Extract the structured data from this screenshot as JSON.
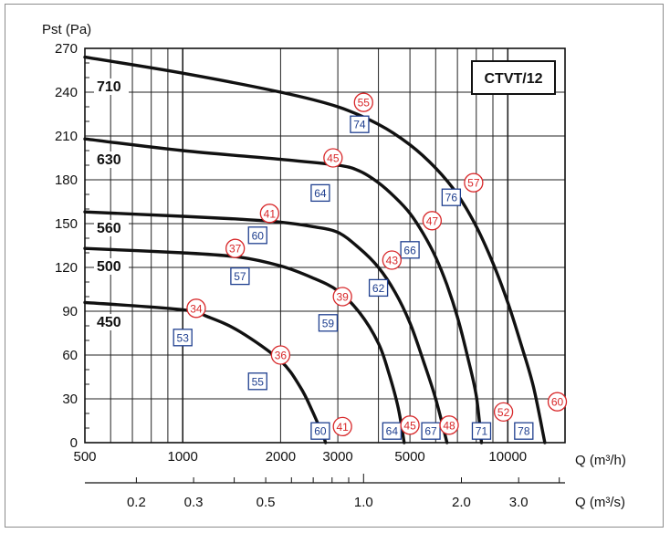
{
  "chart_data": {
    "type": "line",
    "title": "CTVT/12",
    "ylabel": "Pst (Pa)",
    "xlabel": "Q (m³/h)",
    "xlabel_secondary": "Q (m³/s)",
    "x_scale": "log",
    "xlim": [
      500,
      15000
    ],
    "ylim": [
      0,
      270
    ],
    "grid": true,
    "y_ticks": [
      0,
      30,
      60,
      90,
      120,
      150,
      180,
      210,
      240,
      270
    ],
    "x_tick_labels": [
      {
        "value": 500,
        "label": "500"
      },
      {
        "value": 1000,
        "label": "1000"
      },
      {
        "value": 2000,
        "label": "2000"
      },
      {
        "value": 3000,
        "label": "3000"
      },
      {
        "value": 5000,
        "label": "5000"
      },
      {
        "value": 10000,
        "label": "10000"
      }
    ],
    "x2_tick_labels": [
      {
        "value": 0.2,
        "label": "0.2"
      },
      {
        "value": 0.3,
        "label": "0.3"
      },
      {
        "value": 0.5,
        "label": "0.5"
      },
      {
        "value": 1.0,
        "label": "1.0"
      },
      {
        "value": 2.0,
        "label": "2.0"
      },
      {
        "value": 3.0,
        "label": "3.0"
      }
    ],
    "series": [
      {
        "name": "710",
        "points": [
          [
            500,
            264
          ],
          [
            1000,
            253
          ],
          [
            2000,
            240
          ],
          [
            3000,
            230
          ],
          [
            4000,
            218
          ],
          [
            5000,
            204
          ],
          [
            6000,
            188
          ],
          [
            7000,
            170
          ],
          [
            8000,
            148
          ],
          [
            9000,
            123
          ],
          [
            10000,
            96
          ],
          [
            11000,
            67
          ],
          [
            12000,
            38
          ],
          [
            13000,
            0
          ]
        ]
      },
      {
        "name": "630",
        "points": [
          [
            500,
            208
          ],
          [
            1000,
            200
          ],
          [
            2000,
            194
          ],
          [
            3000,
            190
          ],
          [
            3500,
            186
          ],
          [
            4000,
            178
          ],
          [
            4500,
            168
          ],
          [
            5000,
            157
          ],
          [
            5500,
            143
          ],
          [
            6000,
            127
          ],
          [
            6500,
            108
          ],
          [
            7000,
            86
          ],
          [
            7500,
            60
          ],
          [
            8000,
            32
          ],
          [
            8300,
            0
          ]
        ]
      },
      {
        "name": "560",
        "points": [
          [
            500,
            158
          ],
          [
            1000,
            155
          ],
          [
            1500,
            153
          ],
          [
            2000,
            151
          ],
          [
            2500,
            148
          ],
          [
            3000,
            144
          ],
          [
            3500,
            133
          ],
          [
            4000,
            120
          ],
          [
            4500,
            103
          ],
          [
            5000,
            82
          ],
          [
            5500,
            56
          ],
          [
            6000,
            30
          ],
          [
            6500,
            0
          ]
        ]
      },
      {
        "name": "500",
        "points": [
          [
            500,
            133
          ],
          [
            1000,
            130
          ],
          [
            1500,
            127
          ],
          [
            2000,
            121
          ],
          [
            2500,
            113
          ],
          [
            3000,
            104
          ],
          [
            3500,
            89
          ],
          [
            4000,
            68
          ],
          [
            4300,
            48
          ],
          [
            4600,
            24
          ],
          [
            4800,
            0
          ]
        ]
      },
      {
        "name": "450",
        "points": [
          [
            500,
            96
          ],
          [
            1000,
            91
          ],
          [
            1200,
            86
          ],
          [
            1500,
            76
          ],
          [
            2000,
            56
          ],
          [
            2300,
            38
          ],
          [
            2500,
            22
          ],
          [
            2700,
            5
          ],
          [
            2750,
            0
          ]
        ]
      }
    ],
    "noise_markers": [
      {
        "style": "square",
        "label": "74",
        "x": 3500,
        "y": 218
      },
      {
        "style": "square",
        "label": "64",
        "x": 2650,
        "y": 171
      },
      {
        "style": "square",
        "label": "60",
        "x": 1700,
        "y": 142
      },
      {
        "style": "square",
        "label": "57",
        "x": 1500,
        "y": 114
      },
      {
        "style": "square",
        "label": "53",
        "x": 1000,
        "y": 72
      },
      {
        "style": "square",
        "label": "76",
        "x": 6700,
        "y": 168
      },
      {
        "style": "square",
        "label": "66",
        "x": 5000,
        "y": 132
      },
      {
        "style": "square",
        "label": "62",
        "x": 4000,
        "y": 106
      },
      {
        "style": "square",
        "label": "59",
        "x": 2800,
        "y": 82
      },
      {
        "style": "square",
        "label": "55",
        "x": 1700,
        "y": 42
      },
      {
        "style": "square",
        "label": "60",
        "x": 2650,
        "y": 8
      },
      {
        "style": "square",
        "label": "64",
        "x": 4400,
        "y": 8
      },
      {
        "style": "square",
        "label": "67",
        "x": 5800,
        "y": 8
      },
      {
        "style": "square",
        "label": "71",
        "x": 8300,
        "y": 8
      },
      {
        "style": "square",
        "label": "78",
        "x": 11200,
        "y": 8
      },
      {
        "style": "circle",
        "label": "55",
        "x": 3600,
        "y": 233
      },
      {
        "style": "circle",
        "label": "45",
        "x": 2900,
        "y": 195
      },
      {
        "style": "circle",
        "label": "41",
        "x": 1850,
        "y": 157
      },
      {
        "style": "circle",
        "label": "37",
        "x": 1450,
        "y": 133
      },
      {
        "style": "circle",
        "label": "34",
        "x": 1100,
        "y": 92
      },
      {
        "style": "circle",
        "label": "57",
        "x": 7850,
        "y": 178
      },
      {
        "style": "circle",
        "label": "47",
        "x": 5850,
        "y": 152
      },
      {
        "style": "circle",
        "label": "43",
        "x": 4400,
        "y": 125
      },
      {
        "style": "circle",
        "label": "39",
        "x": 3100,
        "y": 100
      },
      {
        "style": "circle",
        "label": "36",
        "x": 2000,
        "y": 60
      },
      {
        "style": "circle",
        "label": "41",
        "x": 3100,
        "y": 11
      },
      {
        "style": "circle",
        "label": "45",
        "x": 5000,
        "y": 12
      },
      {
        "style": "circle",
        "label": "48",
        "x": 6600,
        "y": 12
      },
      {
        "style": "circle",
        "label": "52",
        "x": 9700,
        "y": 21
      },
      {
        "style": "circle",
        "label": "60",
        "x": 14200,
        "y": 28
      }
    ]
  }
}
